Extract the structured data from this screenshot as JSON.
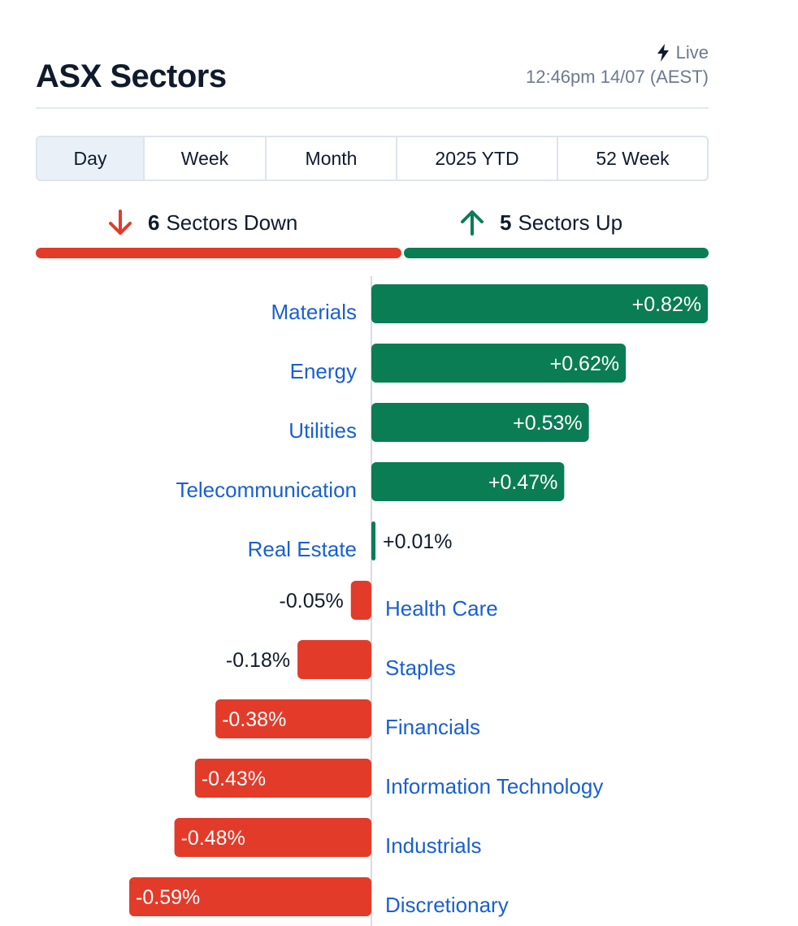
{
  "header": {
    "title": "ASX Sectors",
    "live_label": "Live",
    "timestamp": "12:46pm 14/07 (AEST)",
    "icon": "bolt-icon"
  },
  "tabs": [
    {
      "label": "Day",
      "active": true
    },
    {
      "label": "Week",
      "active": false
    },
    {
      "label": "Month",
      "active": false
    },
    {
      "label": "2025 YTD",
      "active": false
    },
    {
      "label": "52 Week",
      "active": false
    }
  ],
  "summary": {
    "down_count": "6",
    "down_label": "Sectors Down",
    "up_count": "5",
    "up_label": "Sectors Up",
    "down_color": "#e23b2a",
    "up_color": "#0b7d55"
  },
  "chart_data": {
    "type": "bar",
    "orientation": "horizontal-diverging",
    "categories": [
      "Materials",
      "Energy",
      "Utilities",
      "Telecommunication",
      "Real Estate",
      "Health Care",
      "Staples",
      "Financials",
      "Information Technology",
      "Industrials",
      "Discretionary"
    ],
    "values": [
      0.82,
      0.62,
      0.53,
      0.47,
      0.01,
      -0.05,
      -0.18,
      -0.38,
      -0.43,
      -0.48,
      -0.59
    ],
    "labels": [
      "+0.82%",
      "+0.62%",
      "+0.53%",
      "+0.47%",
      "+0.01%",
      "-0.05%",
      "-0.18%",
      "-0.38%",
      "-0.43%",
      "-0.48%",
      "-0.59%"
    ],
    "positive_color": "#0b7d55",
    "negative_color": "#e23b2a",
    "label_color": "#1a5fd1"
  }
}
